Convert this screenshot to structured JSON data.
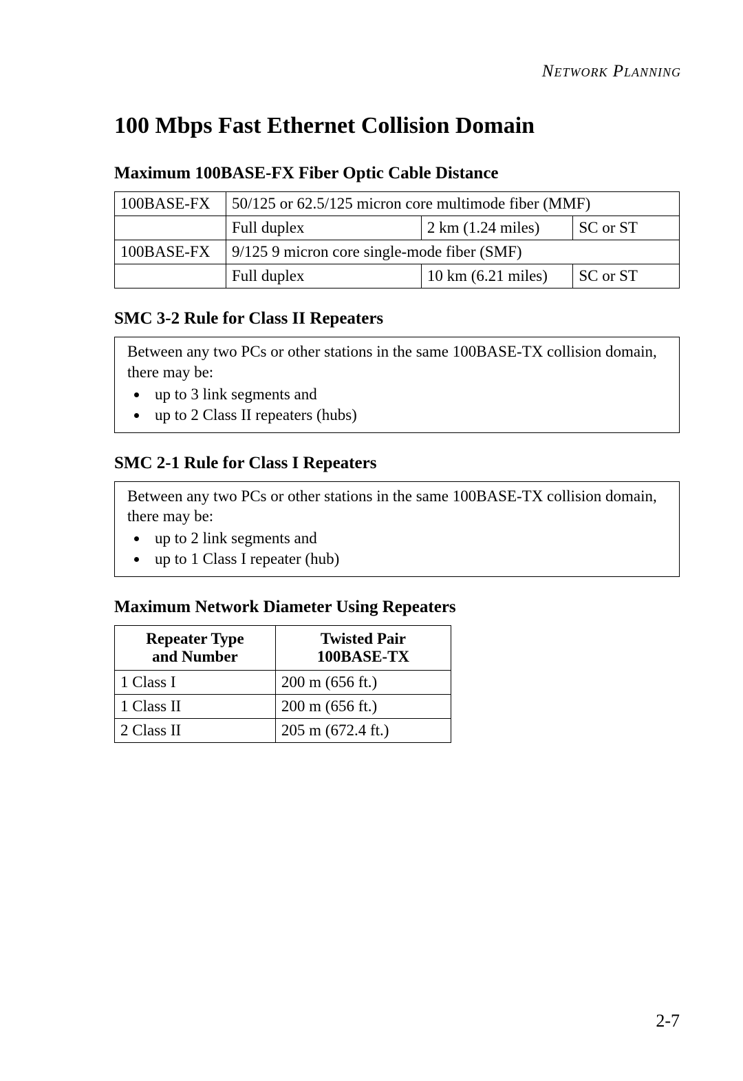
{
  "header": {
    "section": "Network Planning"
  },
  "title": "100 Mbps Fast Ethernet Collision Domain",
  "section1": {
    "heading": "Maximum 100BASE-FX Fiber Optic Cable Distance",
    "rows": {
      "r0c0": "100BASE-FX",
      "r0c1": "50/125 or 62.5/125 micron core multimode fiber (MMF)",
      "r1c1": "Full duplex",
      "r1c2": "2 km (1.24 miles)",
      "r1c3": "SC or ST",
      "r2c0": "100BASE-FX",
      "r2c1": "9/125 9 micron core single-mode fiber (SMF)",
      "r3c1": "Full duplex",
      "r3c2": "10 km (6.21 miles)",
      "r3c3": "SC or ST"
    }
  },
  "section2": {
    "heading": "SMC 3-2 Rule for Class II Repeaters",
    "intro": "Between any two PCs or other stations in the same 100BASE-TX collision domain, there may be:",
    "bullet1": "up to 3 link segments and",
    "bullet2": "up to 2 Class II repeaters (hubs)"
  },
  "section3": {
    "heading": "SMC 2-1 Rule for Class I Repeaters",
    "intro": "Between any two PCs or other stations in the same 100BASE-TX collision domain, there may be:",
    "bullet1": "up to 2 link segments and",
    "bullet2": "up to 1 Class I repeater (hub)"
  },
  "section4": {
    "heading": "Maximum Network Diameter Using Repeaters",
    "col1_line1": "Repeater Type",
    "col1_line2": "and Number",
    "col2_line1": "Twisted Pair",
    "col2_line2": "100BASE-TX",
    "r0c0": "1 Class I",
    "r0c1": "200 m (656 ft.)",
    "r1c0": "1 Class II",
    "r1c1": "200 m (656 ft.)",
    "r2c0": "2 Class II",
    "r2c1": "205 m (672.4 ft.)"
  },
  "page_number": "2-7"
}
